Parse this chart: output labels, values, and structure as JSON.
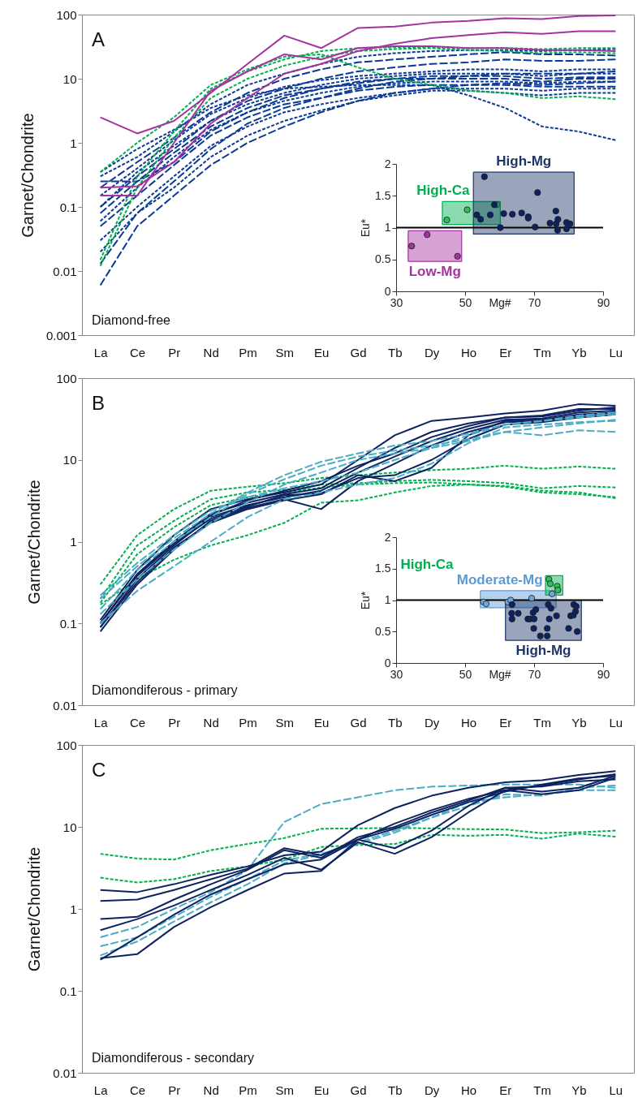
{
  "chart_data": [
    {
      "type": "line",
      "ylabel": "Garnet/Chondrite",
      "log": true,
      "ylim": [
        0.001,
        100
      ],
      "yticks": [
        0.001,
        0.01,
        0.1,
        1,
        10,
        100
      ],
      "annotations": [
        "A",
        "Diamond-free"
      ],
      "categories": [
        "La",
        "Ce",
        "Pr",
        "Nd",
        "Pm",
        "Sm",
        "Eu",
        "Gd",
        "Tb",
        "Dy",
        "Ho",
        "Er",
        "Tm",
        "Yb",
        "Lu"
      ],
      "series": [
        {
          "color": "#0b3a94",
          "line_style": "dotted",
          "values": [
            0.3,
            0.6,
            1.5,
            4,
            8,
            12,
            17,
            22,
            25,
            27,
            28,
            28,
            27,
            28,
            29
          ]
        },
        {
          "color": "#0b3a94",
          "line_style": "dashed",
          "values": [
            0.2,
            0.5,
            1.2,
            3,
            6,
            10,
            14,
            18,
            20,
            22,
            24,
            26,
            24,
            24,
            23
          ]
        },
        {
          "color": "#0b3a94",
          "line_style": "dashed",
          "values": [
            0.1,
            0.3,
            0.8,
            2.2,
            4.5,
            7,
            10,
            13,
            15,
            17,
            18,
            20,
            19,
            19,
            20
          ]
        },
        {
          "color": "#0b3a94",
          "line_style": "dotted",
          "values": [
            0.35,
            0.8,
            1.6,
            3.5,
            5.5,
            7,
            7.5,
            8,
            8,
            8,
            5.5,
            3.5,
            1.8,
            1.5,
            1.1
          ]
        },
        {
          "color": "#0b3a94",
          "line_style": "dotted",
          "values": [
            0.15,
            0.4,
            1.1,
            2.8,
            5,
            7.5,
            9.5,
            11,
            12,
            13,
            14,
            14,
            13,
            14,
            14
          ]
        },
        {
          "color": "#0b3a94",
          "line_style": "dotted",
          "values": [
            0.1,
            0.35,
            0.9,
            2.2,
            4,
            6,
            8,
            10,
            11,
            12,
            12,
            12,
            11,
            12,
            12
          ]
        },
        {
          "color": "#0b3a94",
          "line_style": "dashed",
          "values": [
            0.08,
            0.25,
            0.7,
            1.8,
            3.5,
            5.5,
            7,
            8.5,
            10,
            11,
            11,
            11,
            10,
            10.5,
            10.5
          ]
        },
        {
          "color": "#0b3a94",
          "line_style": "dotted",
          "values": [
            0.06,
            0.2,
            0.6,
            1.6,
            3,
            4.5,
            6,
            7.5,
            8.5,
            9,
            9,
            9,
            8.5,
            9,
            9
          ]
        },
        {
          "color": "#0b3a94",
          "line_style": "dashed",
          "values": [
            0.05,
            0.15,
            0.45,
            1.3,
            2.5,
            4,
            5,
            6.5,
            7.5,
            8,
            8,
            8,
            7.5,
            7.5,
            7.5
          ]
        },
        {
          "color": "#0b3a94",
          "line_style": "dotted",
          "values": [
            0.03,
            0.1,
            0.3,
            0.9,
            1.8,
            3,
            4,
            5,
            6,
            7,
            7,
            7,
            6.5,
            7,
            7
          ]
        },
        {
          "color": "#0b3a94",
          "line_style": "dotted",
          "values": [
            0.02,
            0.08,
            0.2,
            0.6,
            1.3,
            2.2,
            3.2,
            4.5,
            5.5,
            6.5,
            6.5,
            6,
            5.5,
            6,
            6
          ]
        },
        {
          "color": "#0b3a94",
          "line_style": "dashed",
          "values": [
            0.006,
            0.05,
            0.15,
            0.45,
            1,
            1.8,
            3,
            4.5,
            6,
            7,
            8,
            8.5,
            8,
            8.5,
            9
          ]
        },
        {
          "color": "#0b3a94",
          "line_style": "dashed",
          "values": [
            0.013,
            0.08,
            0.25,
            0.8,
            2,
            3.5,
            5,
            7,
            9,
            10,
            11,
            12,
            12,
            12,
            13
          ]
        },
        {
          "color": "#0b3a94",
          "line_style": "dashed",
          "values": [
            0.25,
            0.25,
            0.5,
            1.5,
            3,
            5,
            7,
            9,
            10,
            10,
            10,
            10,
            9,
            10,
            10
          ]
        },
        {
          "color": "#00b050",
          "line_style": "dotted",
          "values": [
            0.015,
            0.3,
            1.5,
            7,
            13,
            20,
            27,
            30,
            31,
            31,
            30,
            30,
            29,
            30,
            30
          ]
        },
        {
          "color": "#00b050",
          "line_style": "dotted",
          "values": [
            0.35,
            1,
            2.5,
            8,
            14,
            22,
            24,
            15,
            10,
            8,
            6.5,
            6,
            5,
            5.3,
            4.8
          ]
        },
        {
          "color": "#00b050",
          "line_style": "dotted",
          "values": [
            0.012,
            0.2,
            1.2,
            5,
            10,
            16,
            22,
            27,
            29,
            30,
            28,
            27,
            25,
            26,
            25
          ]
        },
        {
          "color": "#a5339f",
          "line_style": "solid",
          "values": [
            2.5,
            1.4,
            2.2,
            6,
            17,
            47,
            30,
            62,
            65,
            75,
            80,
            88,
            85,
            95,
            97
          ]
        },
        {
          "color": "#a5339f",
          "line_style": "solid",
          "values": [
            0.2,
            0.21,
            0.5,
            2,
            5,
            12,
            17,
            27,
            35,
            43,
            48,
            53,
            50,
            55,
            55
          ]
        },
        {
          "color": "#a5339f",
          "line_style": "solid",
          "values": [
            0.15,
            0.15,
            1,
            6.5,
            13,
            24,
            20,
            30,
            32,
            32,
            30,
            30,
            28,
            28,
            27
          ]
        }
      ]
    },
    {
      "type": "scatter",
      "xlabel": "Mg#",
      "ylabel": "Eu*",
      "xlim": [
        30,
        90
      ],
      "ylim": [
        0,
        2
      ],
      "xticks": [
        30,
        50,
        70,
        90
      ],
      "yticks": [
        0,
        0.5,
        1,
        1.5,
        2
      ],
      "ref_lines": [
        {
          "axis": "y",
          "value": 1,
          "color": "#000000"
        }
      ],
      "series": [
        {
          "type": "area",
          "name": "Low-Mg",
          "color": "#a5339f",
          "x": [
            33.5,
            49,
            49,
            33.5,
            33.5
          ],
          "values": [
            0.95,
            0.95,
            0.47,
            0.47,
            0.95
          ]
        },
        {
          "type": "area",
          "name": "High-Ca",
          "color": "#00b050",
          "x": [
            43.4,
            60.2,
            60.2,
            43.4,
            43.4
          ],
          "values": [
            1.41,
            1.41,
            1.05,
            1.05,
            1.41
          ]
        },
        {
          "type": "area",
          "name": "High-Mg",
          "color": "#1f3568",
          "x": [
            52.4,
            81.6,
            81.6,
            52.4,
            52.4
          ],
          "values": [
            1.87,
            1.87,
            0.9,
            0.9,
            1.87
          ]
        },
        {
          "color": "#a5339f",
          "x": [
            34.5,
            39,
            47.8
          ],
          "values": [
            0.71,
            0.89,
            0.55
          ]
        },
        {
          "color": "#2fbf5a",
          "x": [
            44.7,
            50.6,
            59.1
          ],
          "values": [
            1.12,
            1.28,
            1.36
          ]
        },
        {
          "color": "#0d2260",
          "x": [
            55.6,
            53.4,
            54.5,
            57.3,
            58.5,
            60.2,
            61.2,
            63.7,
            66.4,
            68.3,
            68.3,
            71,
            70.3,
            74.6,
            76.3,
            76.9,
            76.4,
            76.8,
            79.4,
            79.4,
            80.4
          ],
          "values": [
            1.8,
            1.2,
            1.13,
            1.2,
            1.36,
            1.0,
            1.22,
            1.21,
            1.23,
            1.17,
            1.15,
            1.55,
            1.01,
            1.07,
            1.26,
            1.13,
            1.06,
            0.96,
            1.08,
            0.98,
            1.06
          ]
        }
      ]
    },
    {
      "type": "line",
      "ylabel": "Garnet/Chondrite",
      "log": true,
      "ylim": [
        0.01,
        100
      ],
      "yticks": [
        0.01,
        0.1,
        1,
        10,
        100
      ],
      "annotations": [
        "B",
        "Diamondiferous - primary"
      ],
      "categories": [
        "La",
        "Ce",
        "Pr",
        "Nd",
        "Pm",
        "Sm",
        "Eu",
        "Gd",
        "Tb",
        "Dy",
        "Ho",
        "Er",
        "Tm",
        "Yb",
        "Lu"
      ],
      "series": [
        {
          "color": "#00b050",
          "line_style": "dotted",
          "values": [
            0.3,
            1.2,
            2.5,
            4.2,
            4.7,
            5.2,
            6,
            6.5,
            7,
            7.5,
            7.8,
            8.5,
            7.8,
            8.3,
            7.8
          ]
        },
        {
          "color": "#00b050",
          "line_style": "dotted",
          "values": [
            0.2,
            0.9,
            1.8,
            3.3,
            4,
            4.3,
            5,
            5.2,
            5.5,
            5.7,
            5.5,
            5.2,
            4.5,
            4.8,
            4.6
          ]
        },
        {
          "color": "#00b050",
          "line_style": "dotted",
          "values": [
            0.18,
            0.7,
            1.5,
            2.8,
            3.5,
            4,
            4.6,
            5,
            5.2,
            5.3,
            5,
            4.8,
            4.2,
            4,
            3.4
          ]
        },
        {
          "color": "#00b050",
          "line_style": "dotted",
          "values": [
            0.17,
            0.35,
            0.6,
            0.9,
            1.2,
            1.7,
            3,
            3.2,
            4,
            4.8,
            5,
            4.7,
            4,
            3.8,
            3.5
          ]
        },
        {
          "color": "#0d2260",
          "line_style": "solid",
          "values": [
            0.11,
            0.45,
            1.2,
            2.5,
            3.3,
            4,
            5,
            10,
            20,
            30,
            33,
            37,
            40,
            48,
            46
          ]
        },
        {
          "color": "#0d2260",
          "line_style": "solid",
          "values": [
            0.1,
            0.4,
            1,
            2.2,
            3,
            3.8,
            4.5,
            8,
            14,
            22,
            28,
            33,
            35,
            42,
            42
          ]
        },
        {
          "color": "#0d2260",
          "line_style": "solid",
          "values": [
            0.09,
            0.35,
            0.9,
            2,
            2.8,
            3.5,
            4.2,
            7,
            11,
            17,
            24,
            31,
            32,
            38,
            40
          ]
        },
        {
          "color": "#0d2260",
          "line_style": "solid",
          "values": [
            0.08,
            0.3,
            0.8,
            1.8,
            2.6,
            3.3,
            2.5,
            5.5,
            9,
            15,
            22,
            29,
            30,
            35,
            38
          ]
        },
        {
          "color": "#0d2260",
          "line_style": "solid",
          "values": [
            0.1,
            0.38,
            0.95,
            1.9,
            2.7,
            3.7,
            3.9,
            6,
            6.5,
            10,
            18,
            27,
            29,
            33,
            36
          ]
        },
        {
          "color": "#0d2260",
          "line_style": "solid",
          "values": [
            0.09,
            0.32,
            0.85,
            1.7,
            2.5,
            3.2,
            3.8,
            6.5,
            5.5,
            8,
            20,
            30,
            31,
            36,
            38
          ]
        },
        {
          "color": "#0d2260",
          "line_style": "solid",
          "values": [
            0.1,
            0.4,
            1,
            2.1,
            3.2,
            4.2,
            5.5,
            8.5,
            12,
            19,
            26,
            33,
            34,
            40,
            44
          ]
        },
        {
          "color": "#4bacc6",
          "line_style": "dashed",
          "values": [
            0.2,
            0.5,
            1.1,
            2.2,
            4,
            6.5,
            9.5,
            12,
            15,
            17,
            21,
            27,
            30,
            35,
            38
          ]
        },
        {
          "color": "#4bacc6",
          "line_style": "dashed",
          "values": [
            0.15,
            0.45,
            1,
            2,
            3.8,
            5.8,
            8.5,
            11,
            13,
            15,
            18,
            22,
            25,
            28,
            31
          ]
        },
        {
          "color": "#4bacc6",
          "line_style": "dashed",
          "values": [
            0.13,
            0.35,
            0.8,
            1.7,
            3,
            5,
            7,
            10,
            12,
            14,
            17,
            22,
            20,
            23,
            22
          ]
        },
        {
          "color": "#4bacc6",
          "line_style": "dashed",
          "values": [
            0.1,
            0.25,
            0.5,
            1,
            2,
            3.3,
            4,
            5,
            6,
            9,
            16,
            25,
            27,
            29,
            30
          ]
        },
        {
          "color": "#4bacc6",
          "line_style": "dashed",
          "values": [
            0.22,
            0.55,
            1.2,
            2.4,
            3.5,
            4.5,
            5.5,
            7,
            10,
            14,
            20,
            27,
            30,
            33,
            36
          ]
        }
      ]
    },
    {
      "type": "scatter",
      "xlabel": "Mg#",
      "ylabel": "Eu*",
      "xlim": [
        30,
        90
      ],
      "ylim": [
        0,
        2
      ],
      "xticks": [
        30,
        50,
        70,
        90
      ],
      "yticks": [
        0,
        0.5,
        1,
        1.5,
        2
      ],
      "ref_lines": [
        {
          "axis": "y",
          "value": 1,
          "color": "#000000"
        }
      ],
      "series": [
        {
          "type": "area",
          "name": "Moderate-Mg",
          "color": "#5b9bd5",
          "x": [
            54.4,
            76.4,
            76.4,
            54.4,
            54.4
          ],
          "values": [
            1.15,
            1.15,
            0.88,
            0.88,
            1.15
          ]
        },
        {
          "type": "area",
          "name": "High-Ca",
          "color": "#00b050",
          "x": [
            73.3,
            78.3,
            78.3,
            73.3,
            73.3
          ],
          "values": [
            1.39,
            1.39,
            1.08,
            1.08,
            1.39
          ]
        },
        {
          "type": "area",
          "name": "High-Mg",
          "color": "#1f3568",
          "x": [
            61.7,
            83.7,
            83.7,
            61.7,
            61.7
          ],
          "values": [
            1.0,
            1.0,
            0.36,
            0.36,
            1.0
          ]
        },
        {
          "color": "#6aa8de",
          "x": [
            55.3,
            56.1,
            62.4,
            63.2,
            69.3,
            75.2
          ],
          "values": [
            0.97,
            0.94,
            0.97,
            1.0,
            1.03,
            1.1
          ]
        },
        {
          "color": "#2fbf5a",
          "x": [
            74.3,
            74.7,
            76.7,
            76.9
          ],
          "values": [
            1.33,
            1.26,
            1.22,
            1.16
          ]
        },
        {
          "color": "#0d2260",
          "x": [
            63.6,
            63.5,
            63.6,
            65.4,
            68.2,
            68.8,
            69.7,
            70.5,
            70,
            69.9,
            71.8,
            73.8,
            73.8,
            74.1,
            74.9,
            74.4,
            76.5,
            80,
            80.6,
            81.4,
            81.5,
            82,
            82.2,
            82.5
          ],
          "values": [
            0.93,
            0.79,
            0.7,
            0.79,
            0.7,
            0.7,
            0.8,
            0.85,
            0.7,
            0.55,
            0.43,
            0.55,
            0.43,
            0.93,
            0.87,
            0.7,
            0.75,
            0.55,
            0.75,
            0.76,
            0.93,
            0.82,
            0.9,
            0.5
          ]
        }
      ]
    },
    {
      "type": "line",
      "ylabel": "Garnet/Chondrite",
      "log": true,
      "ylim": [
        0.01,
        100
      ],
      "yticks": [
        0.01,
        0.1,
        1,
        10,
        100
      ],
      "annotations": [
        "C",
        "Diamondiferous - secondary"
      ],
      "categories": [
        "La",
        "Ce",
        "Pr",
        "Nd",
        "Pm",
        "Sm",
        "Eu",
        "Gd",
        "Tb",
        "Dy",
        "Ho",
        "Er",
        "Tm",
        "Yb",
        "Lu"
      ],
      "series": [
        {
          "color": "#00b050",
          "line_style": "dotted",
          "values": [
            4.7,
            4.1,
            4,
            5.2,
            6.2,
            7.3,
            9.5,
            9.6,
            9.7,
            9.6,
            9.4,
            9.3,
            8.4,
            8.6,
            9
          ]
        },
        {
          "color": "#00b050",
          "line_style": "dotted",
          "values": [
            2.4,
            2.1,
            2.3,
            2.9,
            3.3,
            4,
            5.7,
            6,
            6.2,
            8,
            7.8,
            8,
            7.2,
            8.3,
            7.6
          ]
        },
        {
          "color": "#4bacc6",
          "line_style": "dashed",
          "values": [
            0.45,
            0.6,
            1,
            1.6,
            3,
            11.5,
            19,
            23,
            28,
            31,
            32,
            33,
            33,
            33,
            30
          ]
        },
        {
          "color": "#4bacc6",
          "line_style": "dashed",
          "values": [
            0.27,
            0.4,
            0.7,
            1.2,
            2,
            3.6,
            4.6,
            6.5,
            9,
            13,
            18,
            25,
            24,
            30,
            32
          ]
        },
        {
          "color": "#4bacc6",
          "line_style": "dashed",
          "values": [
            0.35,
            0.45,
            0.8,
            1.4,
            2.3,
            3.9,
            4.7,
            6.2,
            8.5,
            13,
            20,
            23,
            25,
            28,
            28
          ]
        },
        {
          "color": "#0d2260",
          "line_style": "solid",
          "values": [
            1.7,
            1.6,
            2,
            2.6,
            3.3,
            4.5,
            5,
            10.5,
            17,
            24,
            30,
            35,
            37,
            43,
            48
          ]
        },
        {
          "color": "#0d2260",
          "line_style": "solid",
          "values": [
            1.25,
            1.3,
            1.7,
            2.3,
            3.1,
            5.5,
            4.5,
            7,
            11,
            16,
            22,
            28,
            32,
            38,
            44
          ]
        },
        {
          "color": "#0d2260",
          "line_style": "solid",
          "values": [
            0.75,
            0.8,
            1.3,
            2,
            3,
            5.2,
            4.2,
            7.5,
            10,
            15,
            21,
            30,
            27,
            30,
            42
          ]
        },
        {
          "color": "#0d2260",
          "line_style": "solid",
          "values": [
            0.55,
            0.75,
            1.1,
            1.7,
            2.6,
            4.2,
            3,
            6.5,
            4.7,
            7.5,
            15,
            28,
            25,
            28,
            40
          ]
        },
        {
          "color": "#0d2260",
          "line_style": "solid",
          "values": [
            0.25,
            0.28,
            0.6,
            1.05,
            1.7,
            2.7,
            2.9,
            7,
            5.5,
            9,
            18,
            30,
            31,
            36,
            38
          ]
        },
        {
          "color": "#0d2260",
          "line_style": "solid",
          "values": [
            0.24,
            0.45,
            0.85,
            1.5,
            2.3,
            3.5,
            4,
            7,
            9.5,
            14,
            20,
            27,
            33,
            39,
            42
          ]
        }
      ]
    }
  ]
}
